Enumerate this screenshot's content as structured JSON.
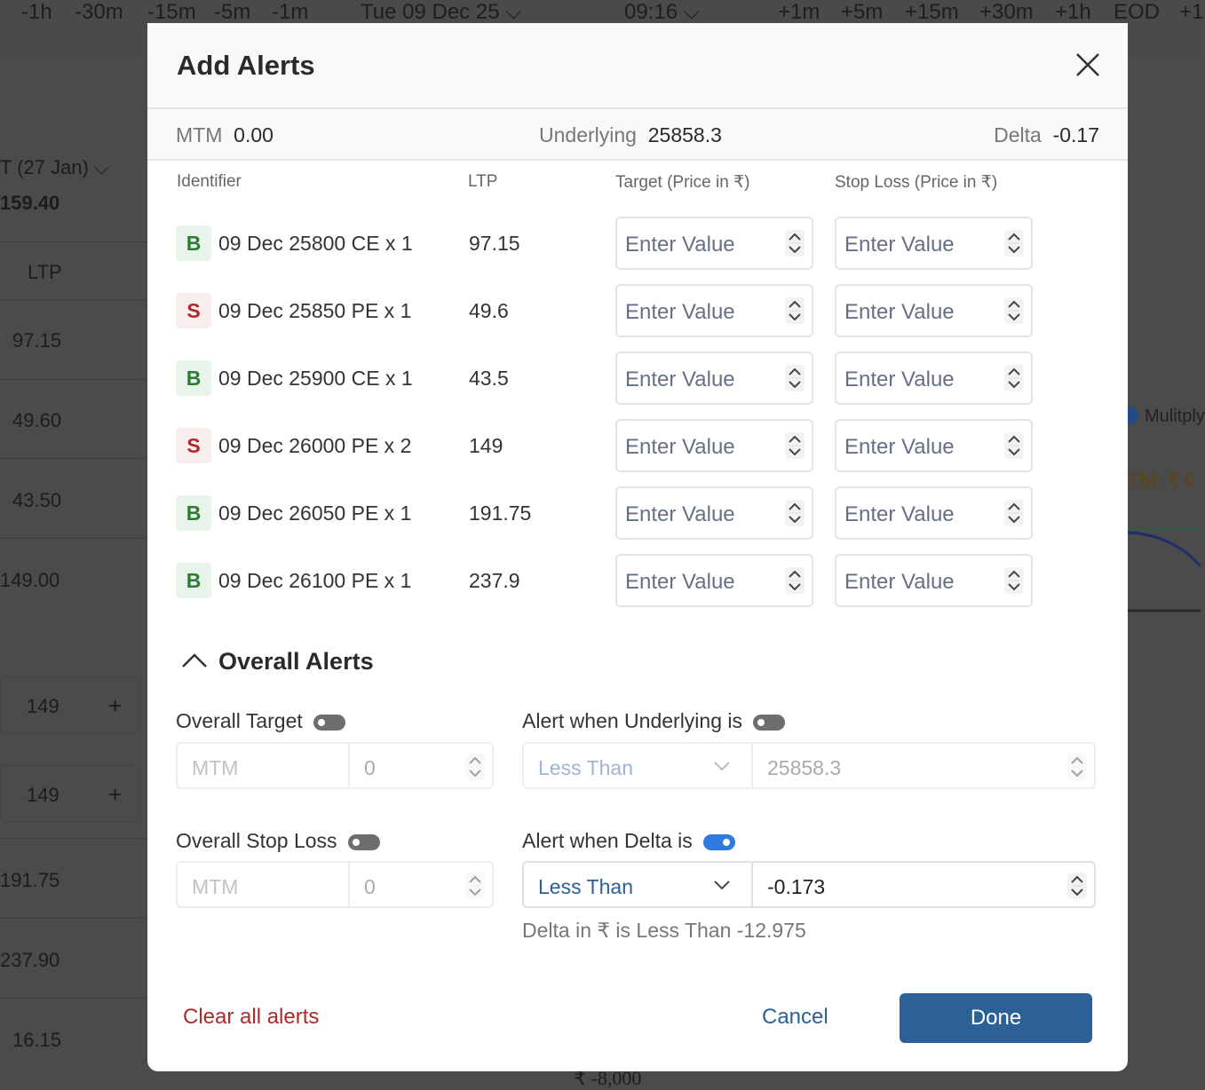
{
  "background": {
    "time_buttons_left": [
      "-1h",
      "-30m",
      "-15m",
      "-5m",
      "-1m"
    ],
    "date": "Tue 09 Dec 25",
    "time": "09:16",
    "time_buttons_right": [
      "+1m",
      "+5m",
      "+15m",
      "+30m",
      "+1h",
      "EOD",
      "+1"
    ],
    "expiry_label": "T (27 Jan)",
    "price": "159.40",
    "ltp_header": "LTP",
    "ltp_values": [
      "97.15",
      "49.60",
      "43.50",
      "149.00"
    ],
    "qty_values": [
      "149",
      "149"
    ],
    "ltp_values_2": [
      "191.75",
      "237.90",
      "16.15"
    ],
    "multiply_label": "Mulitply",
    "mtm_label": "TM: ₹ 0",
    "axis_label": "₹ -8,000"
  },
  "modal": {
    "title": "Add Alerts",
    "summary": {
      "mtm_label": "MTM",
      "mtm_value": "0.00",
      "underlying_label": "Underlying",
      "underlying_value": "25858.3",
      "delta_label": "Delta",
      "delta_value": "-0.17"
    },
    "columns": [
      "Identifier",
      "LTP",
      "Target (Price in ₹)",
      "Stop Loss (Price in ₹)"
    ],
    "input_placeholder": "Enter Value",
    "rows": [
      {
        "side": "B",
        "identifier": "09 Dec 25800 CE x 1",
        "ltp": "97.15"
      },
      {
        "side": "S",
        "identifier": "09 Dec 25850 PE x 1",
        "ltp": "49.6"
      },
      {
        "side": "B",
        "identifier": "09 Dec 25900 CE x 1",
        "ltp": "43.5"
      },
      {
        "side": "S",
        "identifier": "09 Dec 26000 PE x 2",
        "ltp": "149"
      },
      {
        "side": "B",
        "identifier": "09 Dec 26050 PE x 1",
        "ltp": "191.75"
      },
      {
        "side": "B",
        "identifier": "09 Dec 26100 PE x 1",
        "ltp": "237.9"
      }
    ],
    "overall": {
      "heading": "Overall Alerts",
      "target_label": "Overall Target",
      "target_enabled": false,
      "target_type": "MTM",
      "target_value": "0",
      "stoploss_label": "Overall Stop Loss",
      "stoploss_enabled": false,
      "stoploss_type": "MTM",
      "stoploss_value": "0",
      "underlying_label": "Alert when Underlying is",
      "underlying_enabled": false,
      "underlying_condition": "Less Than",
      "underlying_value": "25858.3",
      "delta_label": "Alert when Delta is",
      "delta_enabled": true,
      "delta_condition": "Less Than",
      "delta_value": "-0.173",
      "delta_helper": "Delta in ₹ is Less Than -12.975"
    },
    "footer": {
      "clear_label": "Clear all alerts",
      "cancel_label": "Cancel",
      "done_label": "Done"
    }
  },
  "colors": {
    "buy": "#2e7d32",
    "sell": "#b02a2a",
    "primary": "#2c6197",
    "toggle_on": "#2f7be0",
    "danger": "#ae2a2a"
  }
}
